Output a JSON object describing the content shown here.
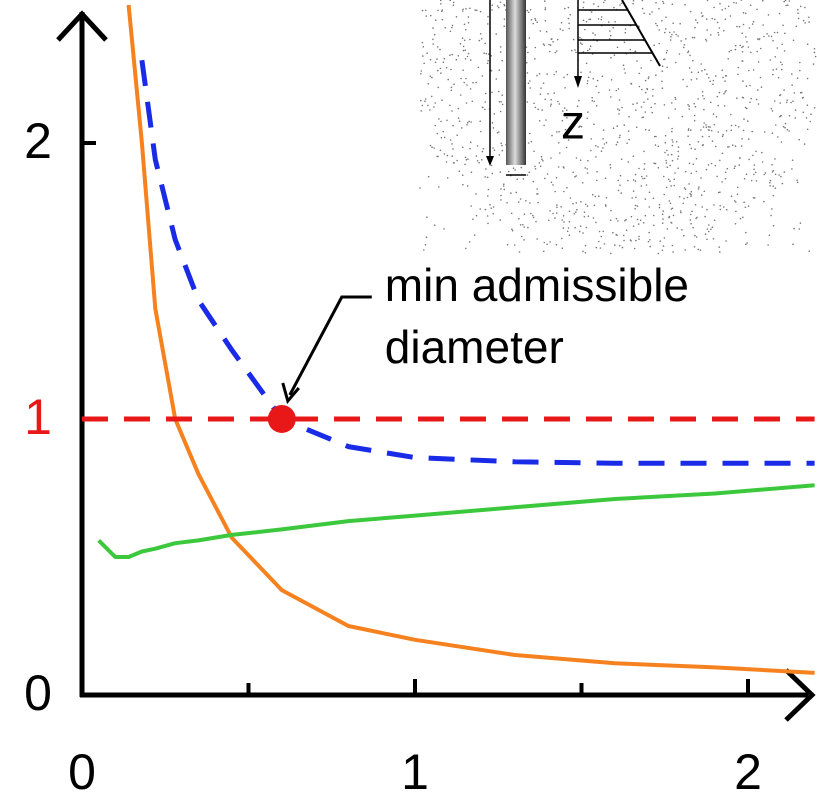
{
  "chart_data": {
    "type": "line",
    "x": [
      0,
      0.05,
      0.1,
      0.14,
      0.18,
      0.22,
      0.28,
      0.35,
      0.45,
      0.6,
      0.8,
      1.0,
      1.3,
      1.6,
      1.9,
      2.2
    ],
    "series": [
      {
        "color": "#f5821f",
        "dash": false,
        "values": [
          null,
          null,
          null,
          2.5,
          2.0,
          1.4,
          1.0,
          0.8,
          0.57,
          0.38,
          0.25,
          0.2,
          0.145,
          0.115,
          0.1,
          0.08
        ]
      },
      {
        "color": "#1a2be8",
        "dash": true,
        "values": [
          null,
          null,
          null,
          null,
          2.3,
          1.94,
          1.65,
          1.43,
          1.25,
          1.0,
          0.9,
          0.86,
          0.845,
          0.84,
          0.84,
          0.84
        ]
      },
      {
        "color": "#3cc83c",
        "dash": false,
        "values": [
          null,
          0.56,
          0.5,
          0.5,
          0.52,
          0.53,
          0.55,
          0.56,
          0.58,
          0.6,
          0.63,
          0.65,
          0.68,
          0.71,
          0.73,
          0.76
        ]
      },
      {
        "color": "#e81818",
        "dash": true,
        "values": [
          1,
          1,
          1,
          1,
          1,
          1,
          1,
          1,
          1,
          1,
          1,
          1,
          1,
          1,
          1,
          1
        ]
      }
    ],
    "point": {
      "x": 0.6,
      "y": 1,
      "color": "#e81818"
    },
    "annotation": {
      "lines": [
        "min admissible",
        "diameter"
      ]
    },
    "xlim": [
      0,
      2.2
    ],
    "ylim": [
      0,
      2.52
    ],
    "xticks": [
      0,
      1,
      2
    ],
    "xminorticks": [
      0.5,
      1.5
    ],
    "yticks": [
      0,
      1,
      2
    ],
    "ytick_label_colors": [
      "#000000",
      "#e81818",
      "#000000"
    ],
    "inset": {
      "label": "z"
    }
  }
}
